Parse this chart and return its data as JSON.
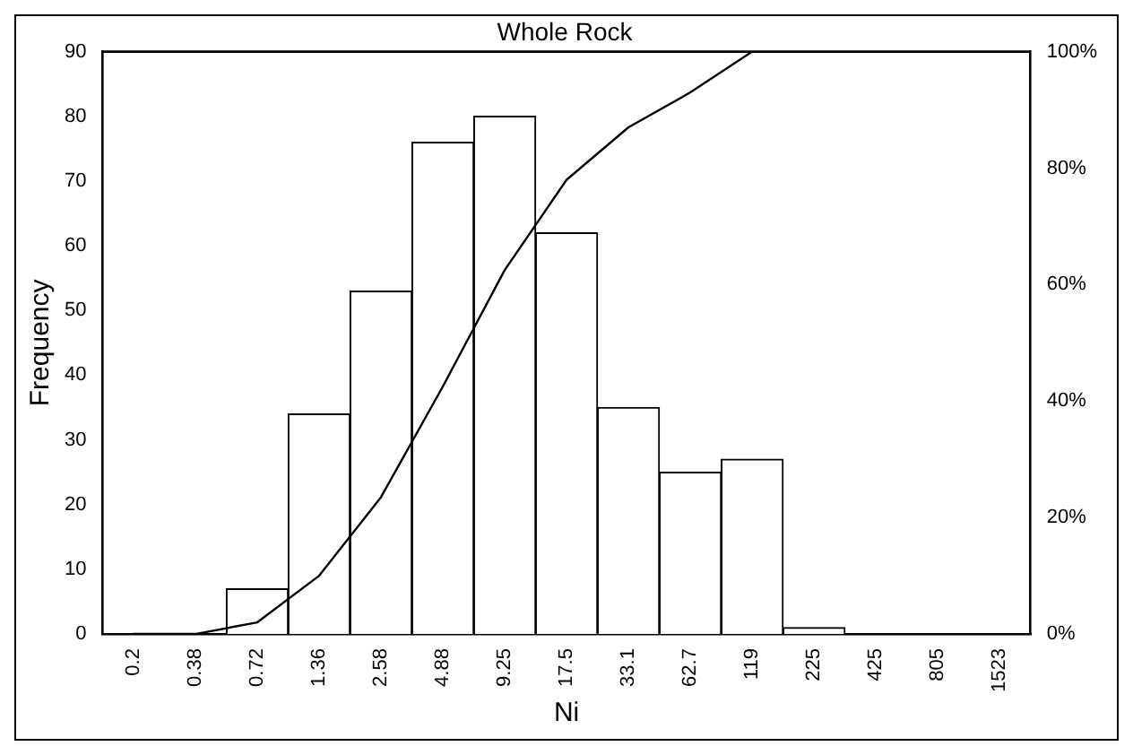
{
  "chart_data": {
    "type": "bar",
    "title": "Whole Rock",
    "xlabel": "Ni",
    "ylabel": "Frequency",
    "categories": [
      "0.2",
      "0.38",
      "0.72",
      "1.36",
      "2.58",
      "4.88",
      "9.25",
      "17.5",
      "33.1",
      "62.7",
      "119",
      "225",
      "425",
      "805",
      "1523"
    ],
    "series": [
      {
        "color": "#ffffff",
        "values": [
          0,
          0,
          7,
          34,
          53,
          76,
          80,
          62,
          35,
          25,
          27,
          1,
          0,
          0,
          0
        ]
      },
      {
        "type": "line",
        "axis": "y2",
        "color": "#000000",
        "values": [
          0,
          0,
          2,
          10,
          23.5,
          42.5,
          62.5,
          78,
          87,
          93,
          100,
          100,
          100,
          100,
          100
        ]
      }
    ],
    "ylim": [
      0,
      90
    ],
    "yticks": [
      0,
      10,
      20,
      30,
      40,
      50,
      60,
      70,
      80,
      90
    ],
    "y2lim": [
      0,
      100
    ],
    "y2ticks": [
      {
        "value": 0,
        "label": "0%"
      },
      {
        "value": 20,
        "label": "20%"
      },
      {
        "value": 40,
        "label": "40%"
      },
      {
        "value": 60,
        "label": "60%"
      },
      {
        "value": 80,
        "label": "80%"
      },
      {
        "value": 100,
        "label": "100%"
      }
    ],
    "grid": false,
    "legend": false,
    "marker": "none",
    "line_style": "solid"
  }
}
